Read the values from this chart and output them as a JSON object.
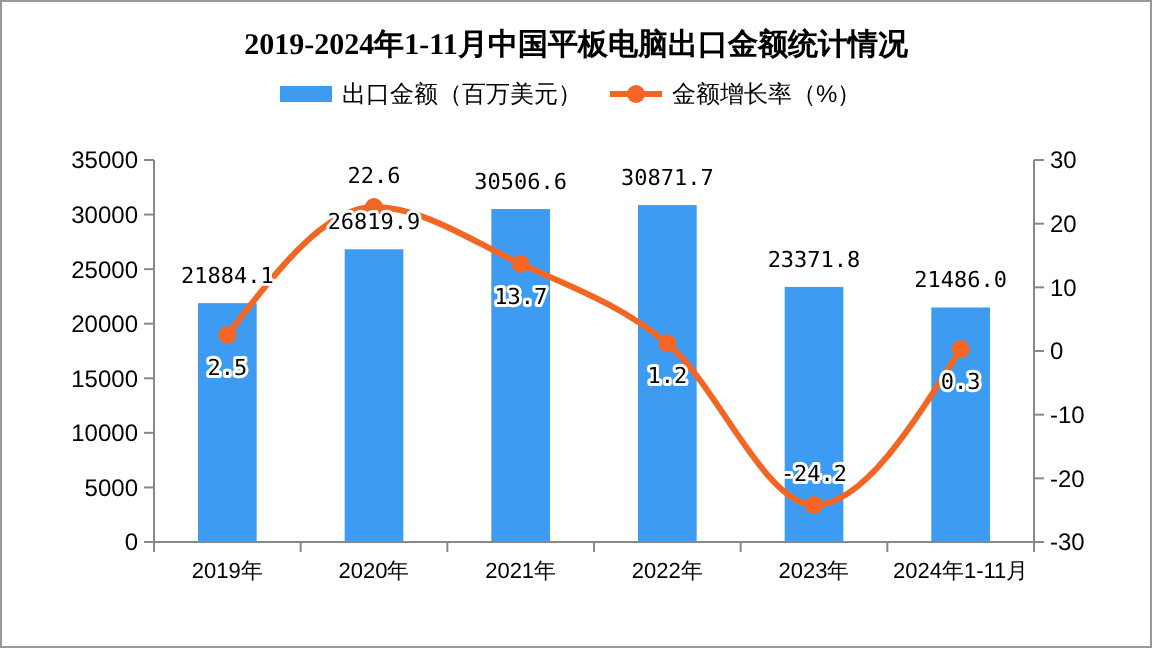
{
  "chart_data": {
    "type": "bar",
    "title": "2019-2024年1-11月中国平板电脑出口金额统计情况",
    "categories": [
      "2019年",
      "2020年",
      "2021年",
      "2022年",
      "2023年",
      "2024年1-11月"
    ],
    "series": [
      {
        "name": "出口金额（百万美元）",
        "color": "#3d9cf2",
        "values": [
          21884.1,
          26819.9,
          30506.6,
          30871.7,
          23371.8,
          21486.0
        ],
        "value_labels": [
          "21884.1",
          "26819.9",
          "30506.6",
          "30871.7",
          "23371.8",
          "21486.0"
        ]
      },
      {
        "name": "金额增长率（%）",
        "type": "line",
        "axis": "y2",
        "color": "#f26522",
        "values": [
          2.5,
          22.6,
          13.7,
          1.2,
          -24.2,
          0.3
        ],
        "value_labels": [
          "2.5",
          "22.6",
          "13.7",
          "1.2",
          "-24.2",
          "0.3"
        ],
        "marker": "circle"
      }
    ],
    "ylim": [
      0,
      35000
    ],
    "yticks": [
      0,
      5000,
      10000,
      15000,
      20000,
      25000,
      30000,
      35000
    ],
    "y2lim": [
      -30,
      30
    ],
    "y2ticks": [
      -30,
      -20,
      -10,
      0,
      10,
      20,
      30
    ],
    "legend": "top",
    "grid": false
  }
}
